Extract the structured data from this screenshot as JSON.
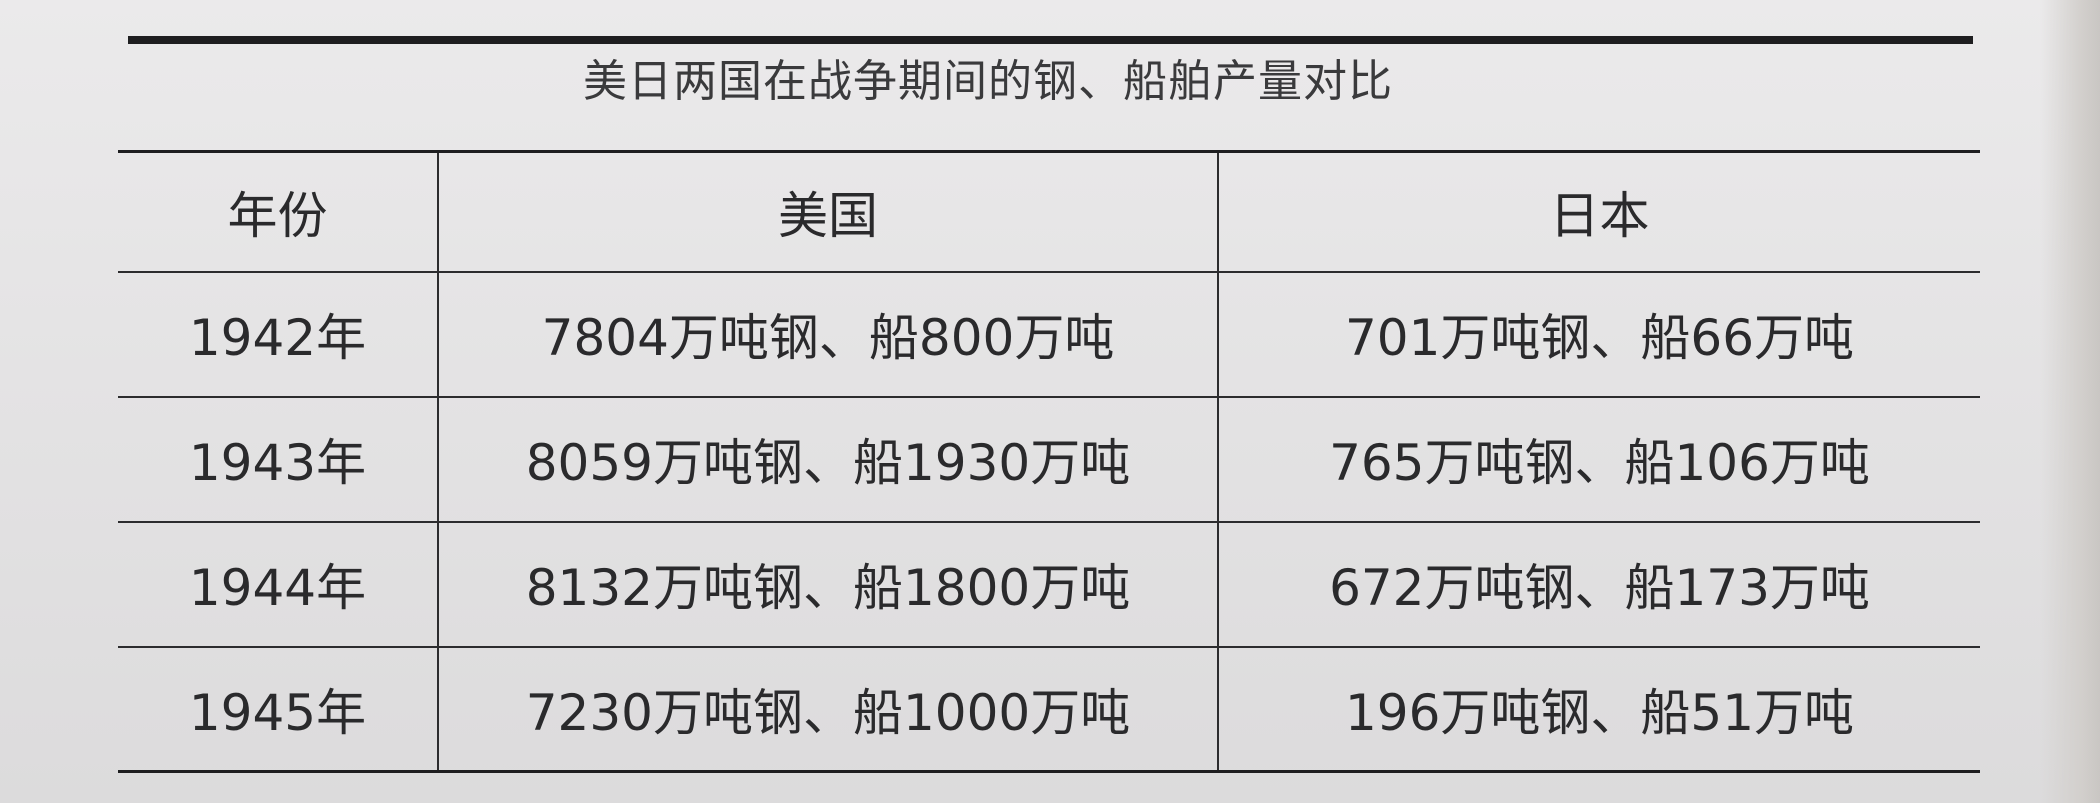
{
  "table": {
    "caption": "美日两国在战争期间的钢、船舶产量对比",
    "headers": [
      "年份",
      "美国",
      "日本"
    ],
    "rows": [
      {
        "year": "1942年",
        "us": "7804万吨钢、船800万吨",
        "japan": "701万吨钢、船66万吨"
      },
      {
        "year": "1943年",
        "us": "8059万吨钢、船1930万吨",
        "japan": "765万吨钢、船106万吨"
      },
      {
        "year": "1944年",
        "us": "8132万吨钢、船1800万吨",
        "japan": "672万吨钢、船173万吨"
      },
      {
        "year": "1945年",
        "us": "7230万吨钢、船1000万吨",
        "japan": "196万吨钢、船51万吨"
      }
    ]
  }
}
